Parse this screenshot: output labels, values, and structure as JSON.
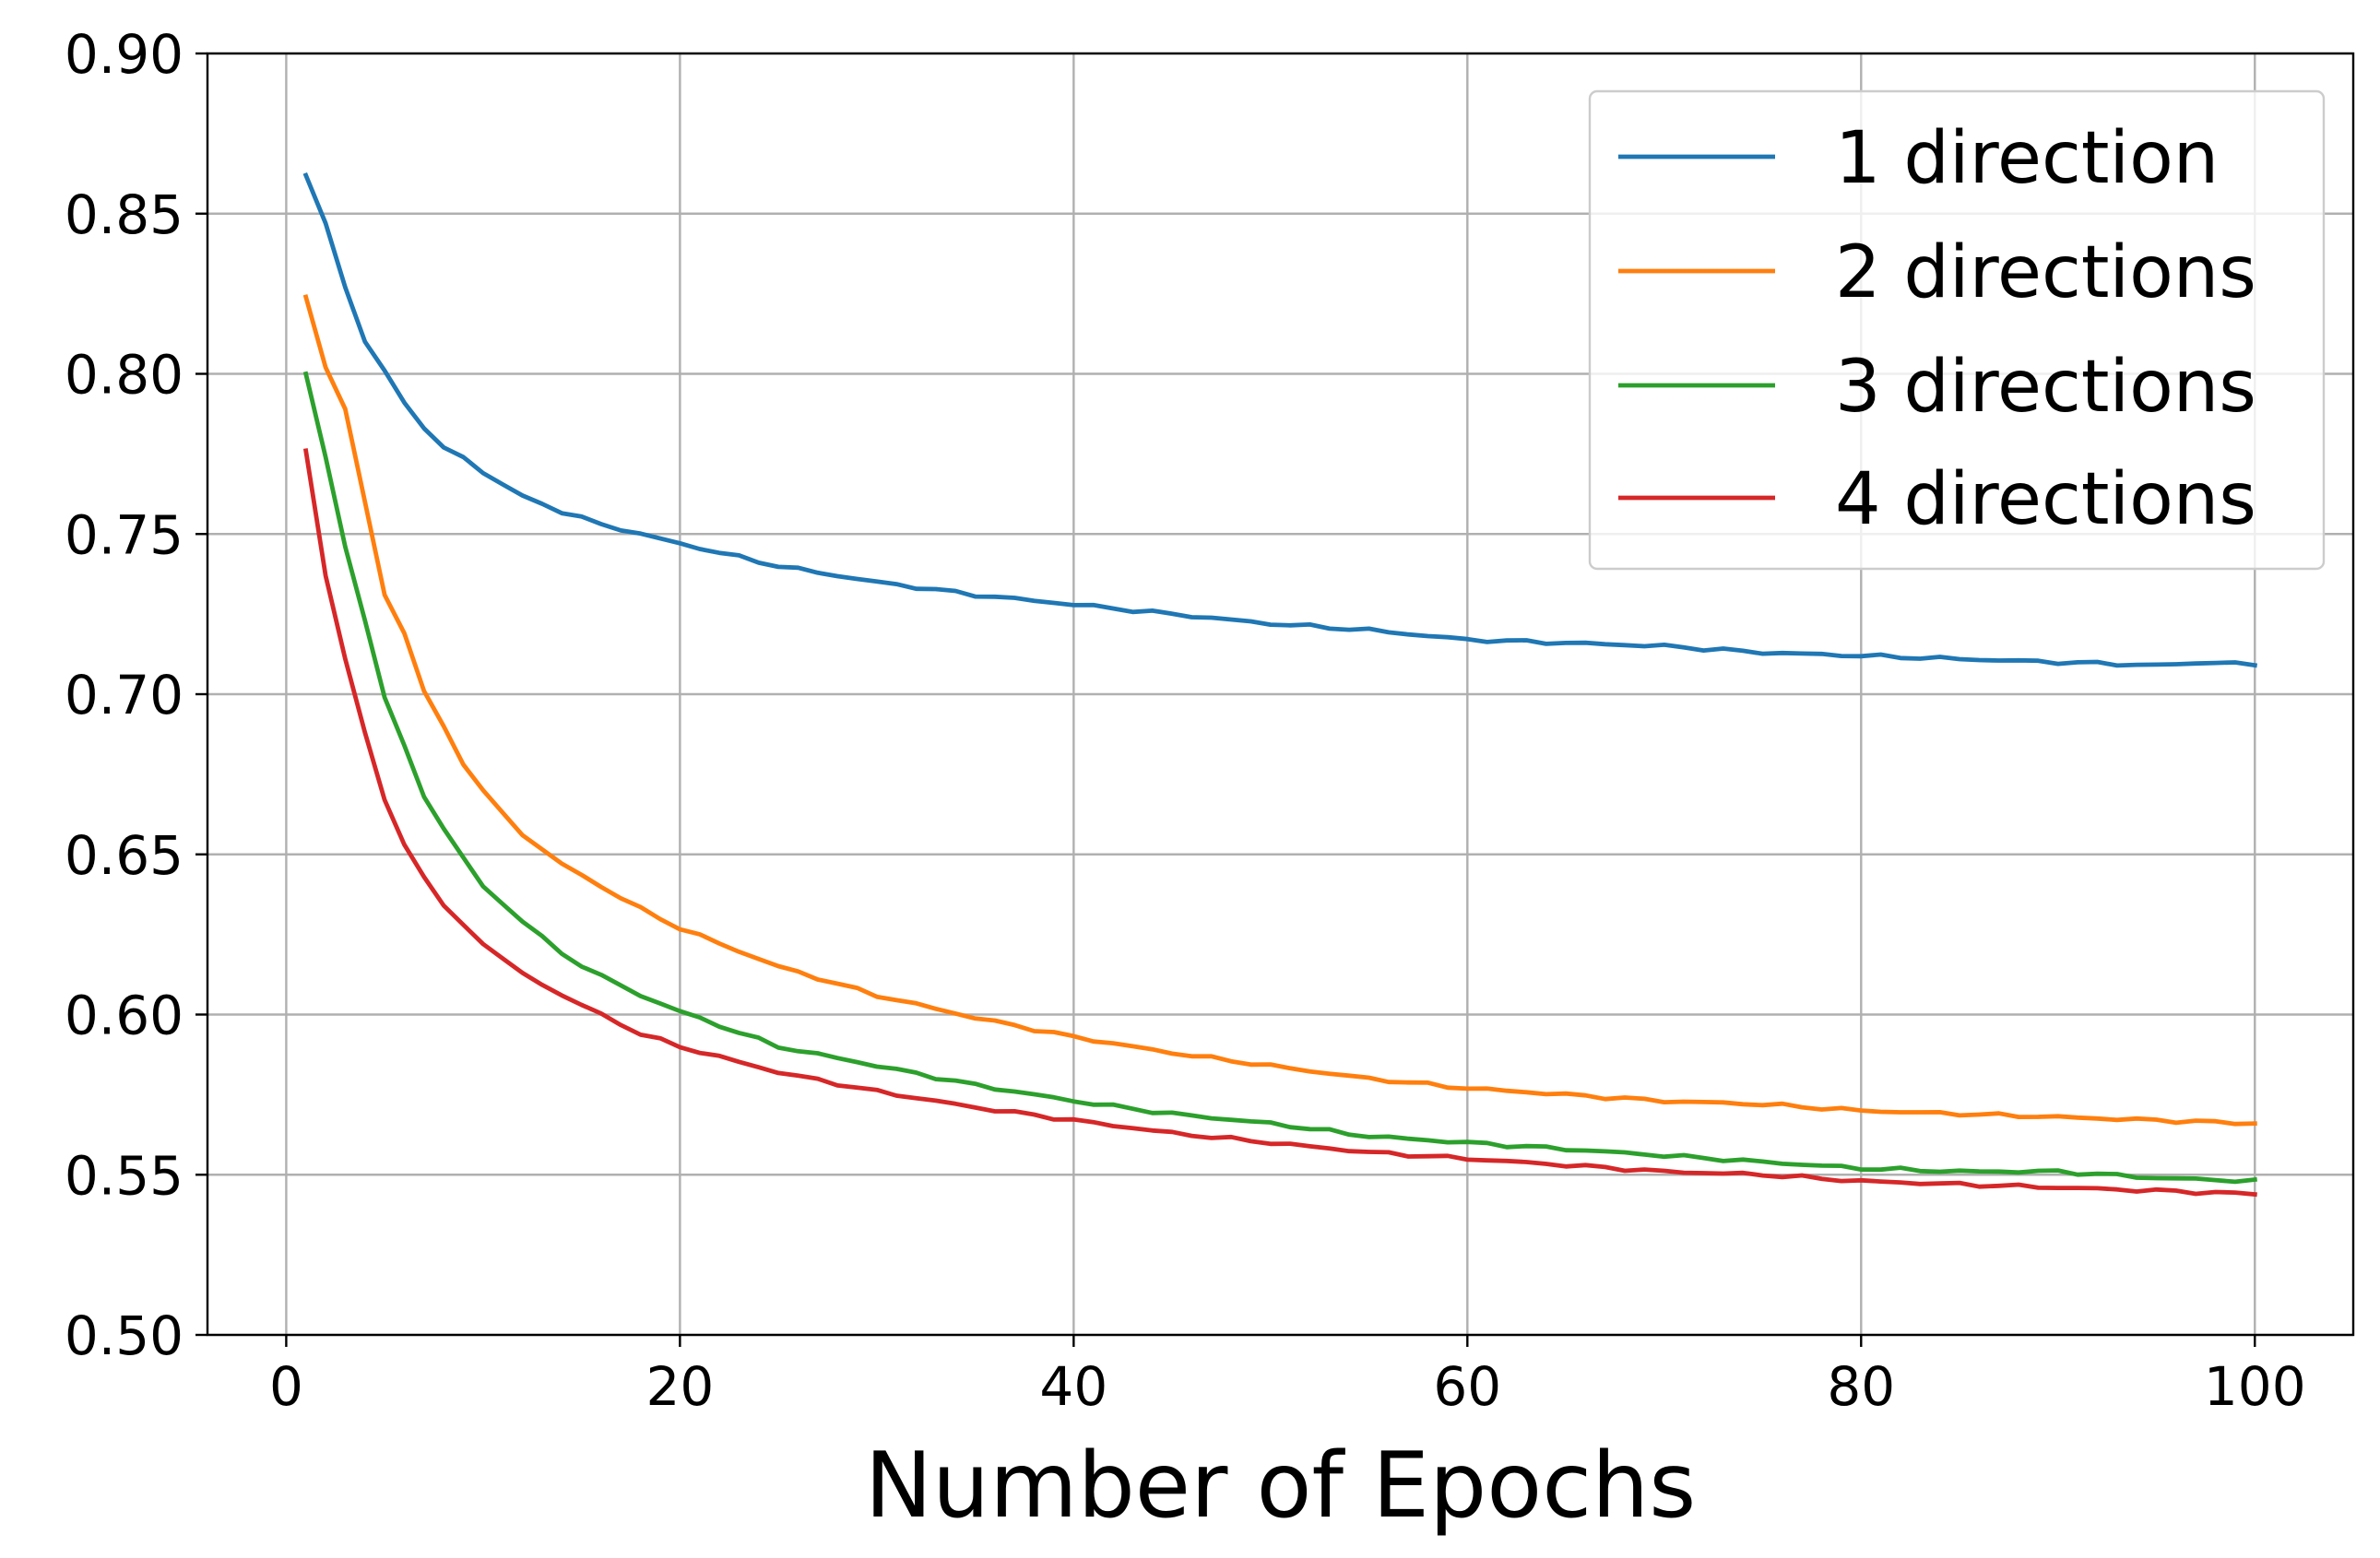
{
  "chart_data": {
    "type": "line",
    "xlabel": "Number of Epochs",
    "ylabel": "",
    "xlim": [
      -4,
      105
    ],
    "ylim": [
      0.5,
      0.9
    ],
    "grid": true,
    "legend_position": "top-right",
    "x_ticks": [
      0,
      20,
      40,
      60,
      80,
      100
    ],
    "x_tick_labels": [
      "0",
      "20",
      "40",
      "60",
      "80",
      "100"
    ],
    "y_ticks": [
      0.5,
      0.55,
      0.6,
      0.65,
      0.7,
      0.75,
      0.8,
      0.85,
      0.9
    ],
    "y_tick_labels": [
      "0.50",
      "0.55",
      "0.60",
      "0.65",
      "0.70",
      "0.75",
      "0.80",
      "0.85",
      "0.90"
    ],
    "series": [
      {
        "name": "1 direction",
        "color": "#1f77b4",
        "anchors": [
          [
            1,
            0.862
          ],
          [
            2,
            0.847
          ],
          [
            3,
            0.827
          ],
          [
            4,
            0.81
          ],
          [
            5,
            0.801
          ],
          [
            6,
            0.791
          ],
          [
            7,
            0.783
          ],
          [
            8,
            0.777
          ],
          [
            9,
            0.774
          ],
          [
            10,
            0.769
          ],
          [
            12,
            0.762
          ],
          [
            14,
            0.757
          ],
          [
            16,
            0.753
          ],
          [
            18,
            0.75
          ],
          [
            20,
            0.747
          ],
          [
            25,
            0.74
          ],
          [
            30,
            0.735
          ],
          [
            35,
            0.731
          ],
          [
            40,
            0.728
          ],
          [
            45,
            0.725
          ],
          [
            50,
            0.722
          ],
          [
            55,
            0.72
          ],
          [
            60,
            0.717
          ],
          [
            65,
            0.716
          ],
          [
            70,
            0.715
          ],
          [
            75,
            0.713
          ],
          [
            80,
            0.712
          ],
          [
            85,
            0.711
          ],
          [
            90,
            0.71
          ],
          [
            95,
            0.709
          ],
          [
            98,
            0.71
          ],
          [
            100,
            0.709
          ]
        ]
      },
      {
        "name": "2 directions",
        "color": "#ff7f0e",
        "anchors": [
          [
            1,
            0.824
          ],
          [
            2,
            0.802
          ],
          [
            3,
            0.789
          ],
          [
            4,
            0.76
          ],
          [
            5,
            0.731
          ],
          [
            6,
            0.719
          ],
          [
            7,
            0.701
          ],
          [
            8,
            0.69
          ],
          [
            9,
            0.678
          ],
          [
            10,
            0.67
          ],
          [
            12,
            0.656
          ],
          [
            14,
            0.647
          ],
          [
            16,
            0.64
          ],
          [
            18,
            0.633
          ],
          [
            20,
            0.627
          ],
          [
            25,
            0.615
          ],
          [
            30,
            0.606
          ],
          [
            35,
            0.599
          ],
          [
            40,
            0.593
          ],
          [
            45,
            0.588
          ],
          [
            50,
            0.584
          ],
          [
            55,
            0.58
          ],
          [
            60,
            0.577
          ],
          [
            65,
            0.575
          ],
          [
            70,
            0.573
          ],
          [
            75,
            0.572
          ],
          [
            80,
            0.57
          ],
          [
            85,
            0.569
          ],
          [
            90,
            0.568
          ],
          [
            95,
            0.567
          ],
          [
            100,
            0.566
          ]
        ]
      },
      {
        "name": "3 directions",
        "color": "#2ca02c",
        "anchors": [
          [
            1,
            0.8
          ],
          [
            2,
            0.774
          ],
          [
            3,
            0.746
          ],
          [
            4,
            0.723
          ],
          [
            5,
            0.699
          ],
          [
            6,
            0.684
          ],
          [
            7,
            0.668
          ],
          [
            8,
            0.658
          ],
          [
            9,
            0.649
          ],
          [
            10,
            0.64
          ],
          [
            12,
            0.629
          ],
          [
            14,
            0.619
          ],
          [
            16,
            0.612
          ],
          [
            18,
            0.606
          ],
          [
            20,
            0.601
          ],
          [
            25,
            0.59
          ],
          [
            30,
            0.584
          ],
          [
            35,
            0.578
          ],
          [
            40,
            0.573
          ],
          [
            45,
            0.569
          ],
          [
            50,
            0.566
          ],
          [
            55,
            0.562
          ],
          [
            60,
            0.56
          ],
          [
            65,
            0.558
          ],
          [
            70,
            0.556
          ],
          [
            75,
            0.554
          ],
          [
            80,
            0.552
          ],
          [
            85,
            0.551
          ],
          [
            90,
            0.551
          ],
          [
            95,
            0.549
          ],
          [
            100,
            0.548
          ]
        ]
      },
      {
        "name": "4 directions",
        "color": "#d62728",
        "anchors": [
          [
            1,
            0.776
          ],
          [
            2,
            0.737
          ],
          [
            3,
            0.711
          ],
          [
            4,
            0.688
          ],
          [
            5,
            0.667
          ],
          [
            6,
            0.653
          ],
          [
            7,
            0.643
          ],
          [
            8,
            0.634
          ],
          [
            9,
            0.628
          ],
          [
            10,
            0.622
          ],
          [
            12,
            0.613
          ],
          [
            14,
            0.606
          ],
          [
            16,
            0.6
          ],
          [
            18,
            0.594
          ],
          [
            20,
            0.59
          ],
          [
            25,
            0.582
          ],
          [
            30,
            0.576
          ],
          [
            35,
            0.571
          ],
          [
            40,
            0.567
          ],
          [
            45,
            0.563
          ],
          [
            50,
            0.56
          ],
          [
            55,
            0.557
          ],
          [
            60,
            0.555
          ],
          [
            65,
            0.553
          ],
          [
            70,
            0.551
          ],
          [
            75,
            0.55
          ],
          [
            80,
            0.548
          ],
          [
            85,
            0.547
          ],
          [
            90,
            0.546
          ],
          [
            95,
            0.545
          ],
          [
            100,
            0.544
          ]
        ]
      }
    ]
  }
}
